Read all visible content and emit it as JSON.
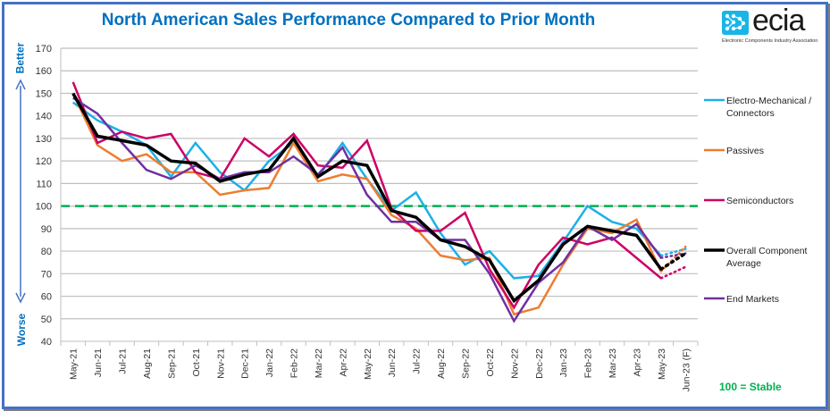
{
  "chart_data": {
    "type": "line",
    "title": "North American Sales Performance Compared to Prior Month",
    "xlabel": "",
    "ylabel": "",
    "ylim": [
      40,
      170
    ],
    "yticks": [
      40,
      50,
      60,
      70,
      80,
      90,
      100,
      110,
      120,
      130,
      140,
      150,
      160,
      170
    ],
    "grid": true,
    "legend_position": "right",
    "categories": [
      "May-21",
      "Jun-21",
      "Jul-21",
      "Aug-21",
      "Sep-21",
      "Oct-21",
      "Nov-21",
      "Dec-21",
      "Jan-22",
      "Feb-22",
      "Mar-22",
      "Apr-22",
      "May-22",
      "Jun-22",
      "Jul-22",
      "Aug-22",
      "Sep-22",
      "Oct-22",
      "Nov-22",
      "Dec-22",
      "Jan-23",
      "Feb-23",
      "Mar-23",
      "Apr-23",
      "May-23",
      "Jun-23 (F)"
    ],
    "forecast_category": "Jun-23 (F)",
    "reference_line": {
      "value": 100,
      "label": "100 = Stable",
      "color": "#00B050",
      "style": "dashed"
    },
    "series": [
      {
        "name": "Electro-Mechanical / Connectors",
        "color": "#1CB0E8",
        "values": [
          146,
          138,
          133,
          127,
          113,
          128,
          115,
          107,
          120,
          128,
          113,
          128,
          112,
          98,
          106,
          88,
          74,
          80,
          68,
          69,
          84,
          100,
          93,
          90,
          78,
          81
        ]
      },
      {
        "name": "Passives",
        "color": "#ED7D31",
        "values": [
          150,
          127,
          120,
          123,
          115,
          115,
          105,
          107,
          108,
          128,
          111,
          114,
          112,
          96,
          90,
          78,
          76,
          77,
          52,
          55,
          74,
          90,
          88,
          94,
          71,
          82
        ]
      },
      {
        "name": "Semiconductors",
        "color": "#CC0066",
        "values": [
          155,
          128,
          133,
          130,
          132,
          115,
          112,
          130,
          122,
          132,
          118,
          117,
          129,
          99,
          89,
          89,
          97,
          72,
          55,
          74,
          86,
          83,
          86,
          77,
          68,
          73
        ]
      },
      {
        "name": "Overall Component Average",
        "color": "#000000",
        "values": [
          150,
          131,
          129,
          127,
          120,
          119,
          111,
          114,
          116,
          130,
          113,
          120,
          118,
          98,
          95,
          85,
          82,
          76,
          58,
          67,
          83,
          91,
          89,
          87,
          72,
          79
        ]
      },
      {
        "name": "End Markets",
        "color": "#7030A0",
        "values": [
          148,
          141,
          128,
          116,
          112,
          118,
          112,
          115,
          115,
          122,
          114,
          126,
          105,
          93,
          93,
          85,
          85,
          70,
          49,
          66,
          75,
          91,
          85,
          92,
          77,
          79
        ]
      }
    ],
    "side_labels": {
      "top": "Better",
      "bottom": "Worse"
    }
  },
  "logo": {
    "name": "ecia",
    "subtitle": "Electronic Components Industry Association"
  }
}
